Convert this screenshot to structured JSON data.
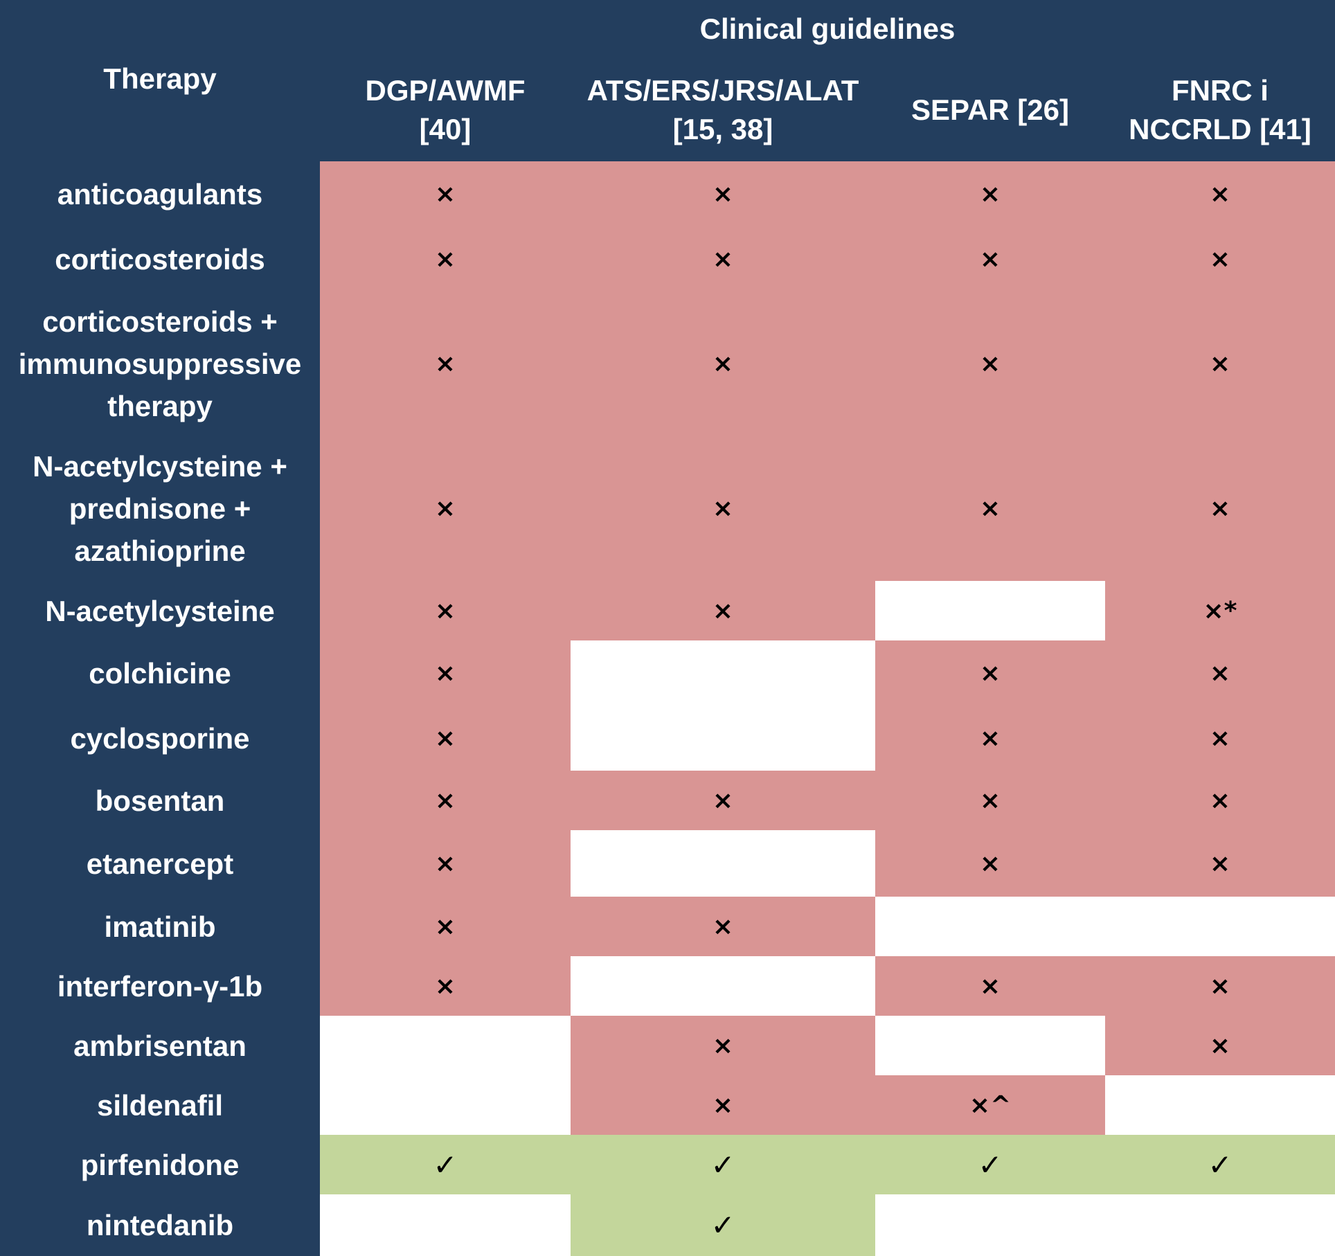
{
  "header": {
    "therapy": "Therapy",
    "group": "Clinical guidelines",
    "columns": [
      "DGP/AWMF\n[40]",
      "ATS/ERS/JRS/ALAT\n[15, 38]",
      "SEPAR [26]",
      "FNRC i\nNCCRLD [41]"
    ]
  },
  "colors": {
    "header_bg": "#233e5e",
    "not_recommended": "#d99594",
    "recommended": "#c3d69b",
    "no_statement": "#ffffff"
  },
  "rows": [
    {
      "therapy": "anticoagulants",
      "cells": [
        {
          "status": "not_recommended",
          "mark": "×"
        },
        {
          "status": "not_recommended",
          "mark": "×"
        },
        {
          "status": "not_recommended",
          "mark": "×"
        },
        {
          "status": "not_recommended",
          "mark": "×"
        }
      ]
    },
    {
      "therapy": "corticosteroids",
      "cells": [
        {
          "status": "not_recommended",
          "mark": "×"
        },
        {
          "status": "not_recommended",
          "mark": "×"
        },
        {
          "status": "not_recommended",
          "mark": "×"
        },
        {
          "status": "not_recommended",
          "mark": "×"
        }
      ]
    },
    {
      "therapy": "corticosteroids +\nimmunosuppressive\ntherapy",
      "cells": [
        {
          "status": "not_recommended",
          "mark": "×"
        },
        {
          "status": "not_recommended",
          "mark": "×"
        },
        {
          "status": "not_recommended",
          "mark": "×"
        },
        {
          "status": "not_recommended",
          "mark": "×"
        }
      ]
    },
    {
      "therapy": "N-acetylcysteine +\nprednisone +\nazathioprine",
      "cells": [
        {
          "status": "not_recommended",
          "mark": "×"
        },
        {
          "status": "not_recommended",
          "mark": "×"
        },
        {
          "status": "not_recommended",
          "mark": "×"
        },
        {
          "status": "not_recommended",
          "mark": "×"
        }
      ]
    },
    {
      "therapy": "N-acetylcysteine",
      "cells": [
        {
          "status": "not_recommended",
          "mark": "×"
        },
        {
          "status": "not_recommended",
          "mark": "×"
        },
        {
          "status": "no_statement",
          "mark": ""
        },
        {
          "status": "not_recommended",
          "mark": "×*"
        }
      ]
    },
    {
      "therapy": "colchicine",
      "cells": [
        {
          "status": "not_recommended",
          "mark": "×"
        },
        {
          "status": "no_statement",
          "mark": ""
        },
        {
          "status": "not_recommended",
          "mark": "×"
        },
        {
          "status": "not_recommended",
          "mark": "×"
        }
      ]
    },
    {
      "therapy": "cyclosporine",
      "cells": [
        {
          "status": "not_recommended",
          "mark": "×"
        },
        {
          "status": "no_statement",
          "mark": ""
        },
        {
          "status": "not_recommended",
          "mark": "×"
        },
        {
          "status": "not_recommended",
          "mark": "×"
        }
      ]
    },
    {
      "therapy": "bosentan",
      "cells": [
        {
          "status": "not_recommended",
          "mark": "×"
        },
        {
          "status": "not_recommended",
          "mark": "×"
        },
        {
          "status": "not_recommended",
          "mark": "×"
        },
        {
          "status": "not_recommended",
          "mark": "×"
        }
      ]
    },
    {
      "therapy": "etanercept",
      "cells": [
        {
          "status": "not_recommended",
          "mark": "×"
        },
        {
          "status": "no_statement",
          "mark": ""
        },
        {
          "status": "not_recommended",
          "mark": "×"
        },
        {
          "status": "not_recommended",
          "mark": "×"
        }
      ]
    },
    {
      "therapy": "imatinib",
      "cells": [
        {
          "status": "not_recommended",
          "mark": "×"
        },
        {
          "status": "not_recommended",
          "mark": "×"
        },
        {
          "status": "no_statement",
          "mark": ""
        },
        {
          "status": "no_statement",
          "mark": ""
        }
      ]
    },
    {
      "therapy": "interferon-γ-1b",
      "cells": [
        {
          "status": "not_recommended",
          "mark": "×"
        },
        {
          "status": "no_statement",
          "mark": ""
        },
        {
          "status": "not_recommended",
          "mark": "×"
        },
        {
          "status": "not_recommended",
          "mark": "×"
        }
      ]
    },
    {
      "therapy": "ambrisentan",
      "cells": [
        {
          "status": "no_statement",
          "mark": ""
        },
        {
          "status": "not_recommended",
          "mark": "×"
        },
        {
          "status": "no_statement",
          "mark": ""
        },
        {
          "status": "not_recommended",
          "mark": "×"
        }
      ]
    },
    {
      "therapy": "sildenafil",
      "cells": [
        {
          "status": "no_statement",
          "mark": ""
        },
        {
          "status": "not_recommended",
          "mark": "×"
        },
        {
          "status": "not_recommended",
          "mark": "×^"
        },
        {
          "status": "no_statement",
          "mark": ""
        }
      ]
    },
    {
      "therapy": "pirfenidone",
      "cells": [
        {
          "status": "recommended",
          "mark": "✓"
        },
        {
          "status": "recommended",
          "mark": "✓"
        },
        {
          "status": "recommended",
          "mark": "✓"
        },
        {
          "status": "recommended",
          "mark": "✓"
        }
      ]
    },
    {
      "therapy": "nintedanib",
      "cells": [
        {
          "status": "no_statement",
          "mark": ""
        },
        {
          "status": "recommended",
          "mark": "✓"
        },
        {
          "status": "no_statement",
          "mark": ""
        },
        {
          "status": "no_statement",
          "mark": ""
        }
      ]
    }
  ]
}
